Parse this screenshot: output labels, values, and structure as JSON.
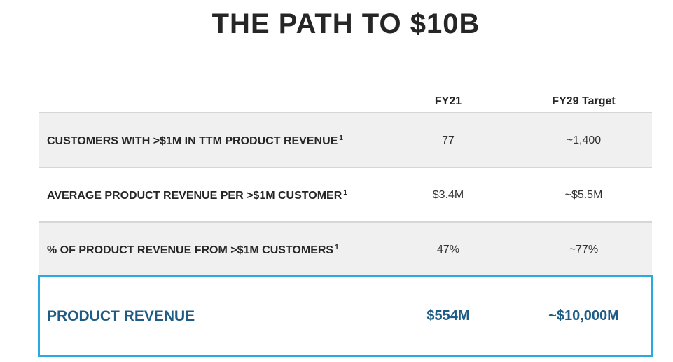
{
  "title": "THE PATH TO $10B",
  "table": {
    "columns": [
      "FY21",
      "FY29 Target"
    ],
    "rows": [
      {
        "label": "CUSTOMERS WITH >$1M IN TTM PRODUCT REVENUE",
        "footnote": "1",
        "fy21": "77",
        "fy29": "~1,400"
      },
      {
        "label": "AVERAGE PRODUCT REVENUE PER >$1M CUSTOMER",
        "footnote": "1",
        "fy21": "$3.4M",
        "fy29": "~$5.5M"
      },
      {
        "label": "% OF PRODUCT REVENUE FROM >$1M CUSTOMERS",
        "footnote": "1",
        "fy21": "47%",
        "fy29": "~77%"
      }
    ],
    "total": {
      "label": "PRODUCT REVENUE",
      "fy21": "$554M",
      "fy29": "~$10,000M"
    }
  },
  "colors": {
    "highlight_border": "#29a9df",
    "highlight_text": "#1e5b85",
    "row_shade": "#f0f0f0"
  }
}
